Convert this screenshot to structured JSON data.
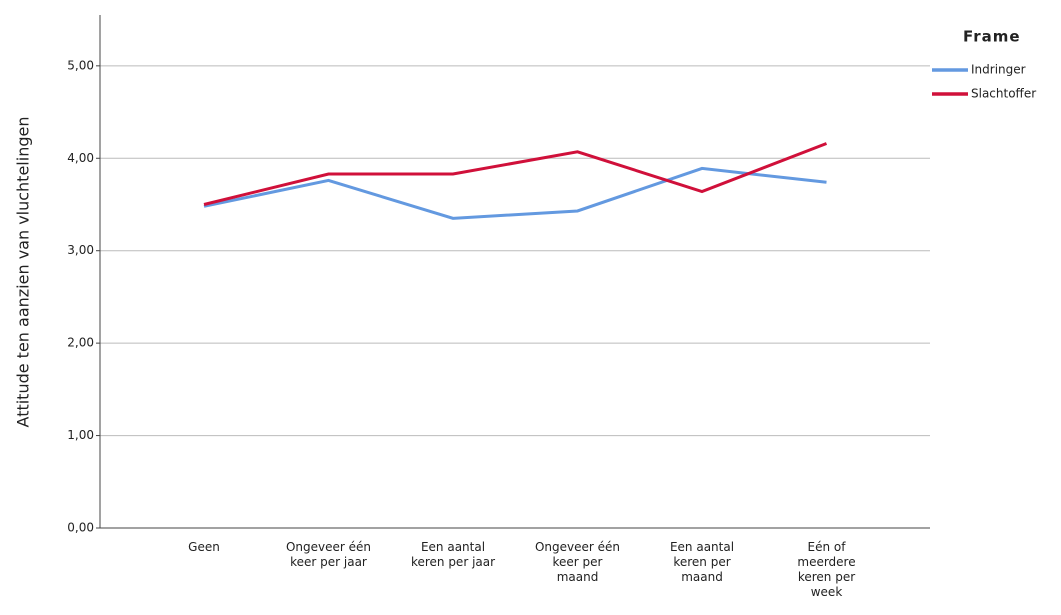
{
  "chart_data": {
    "type": "line",
    "y_label": "Attitude ten aanzien van vluchtelingen",
    "categories": [
      "Geen",
      "Ongeveer één\nkeer per jaar",
      "Een aantal\nkeren per jaar",
      "Ongeveer één\nkeer per\nmaand",
      "Een aantal\nkeren per\nmaand",
      "Eén of\nmeerdere\nkeren per\nweek"
    ],
    "series": [
      {
        "name": "Indringer",
        "color": "#6399e0",
        "values": [
          3.48,
          3.76,
          3.35,
          3.43,
          3.89,
          3.74
        ]
      },
      {
        "name": "Slachtoffer",
        "color": "#d0103a",
        "values": [
          3.5,
          3.83,
          3.83,
          4.07,
          3.64,
          4.16
        ]
      }
    ],
    "legend_title": "Frame",
    "legend": "right",
    "ylim": [
      0,
      5.55
    ],
    "yticks": [
      {
        "value": 0,
        "label": "0,00"
      },
      {
        "value": 1,
        "label": "1,00"
      },
      {
        "value": 2,
        "label": "2,00"
      },
      {
        "value": 3,
        "label": "3,00"
      },
      {
        "value": 4,
        "label": "4,00"
      },
      {
        "value": 5,
        "label": "5,00"
      }
    ],
    "grid": true
  }
}
